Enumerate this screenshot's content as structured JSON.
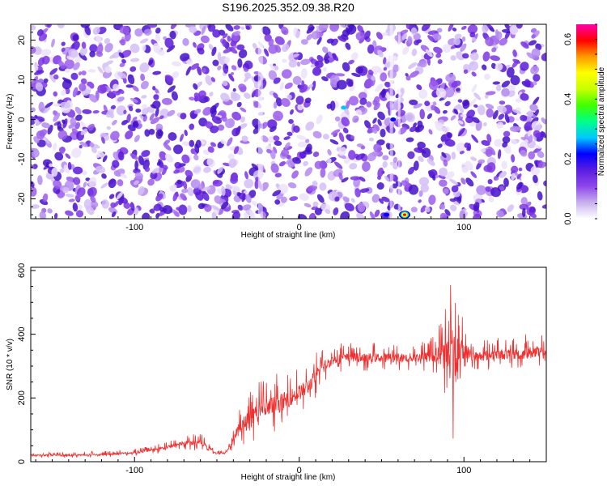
{
  "title": "S196.2025.352.09.38.R20",
  "top_panel": {
    "type": "heatmap",
    "xlabel": "Height of straight line (km)",
    "ylabel": "Frequency (Hz)",
    "xlim": [
      -163,
      150
    ],
    "ylim": [
      -25,
      24
    ],
    "xticks": [
      -100,
      0,
      100
    ],
    "yticks": [
      -20,
      -10,
      0,
      10,
      20
    ],
    "colorbar": {
      "label": "Normalized spectral amplitude",
      "range": [
        0.0,
        0.65
      ],
      "ticks": [
        0.0,
        0.2,
        0.4,
        0.6
      ],
      "colors": [
        "#ffffff",
        "#c8b0ee",
        "#8f46ec",
        "#5b1ee0",
        "#0000ff",
        "#00c8ff",
        "#00ff88",
        "#40ff00",
        "#c8ff00",
        "#ffff00",
        "#ff9900",
        "#ff0000",
        "#ff00aa"
      ]
    },
    "hotspots": [
      {
        "x": 64,
        "y": -24,
        "value": 0.62
      },
      {
        "x": 53,
        "y": -24,
        "value": 0.22
      },
      {
        "x": 27,
        "y": 3,
        "value": 0.25
      },
      {
        "x": 57,
        "y": 0,
        "value": 0.22
      }
    ]
  },
  "chart_data": {
    "type": "line",
    "title": "S196.2025.352.09.38.R20",
    "xlabel": "Height of straight line (km)",
    "ylabel": "SNR (10 * v/v)",
    "xlim": [
      -163,
      150
    ],
    "ylim": [
      0,
      610
    ],
    "xticks": [
      -100,
      0,
      100
    ],
    "yticks": [
      0,
      200,
      400,
      600
    ],
    "series": [
      {
        "name": "SNR",
        "color": "#ee3030",
        "x": [
          -163,
          -140,
          -120,
          -100,
          -90,
          -80,
          -70,
          -60,
          -55,
          -50,
          -45,
          -40,
          -35,
          -30,
          -25,
          -20,
          -15,
          -10,
          -5,
          0,
          5,
          10,
          15,
          20,
          25,
          30,
          40,
          50,
          60,
          70,
          80,
          85,
          90,
          93,
          96,
          97,
          99,
          100,
          105,
          110,
          120,
          130,
          140,
          150
        ],
        "mean": [
          20,
          20,
          22,
          28,
          35,
          45,
          58,
          60,
          45,
          25,
          28,
          70,
          110,
          130,
          150,
          160,
          175,
          185,
          200,
          215,
          230,
          265,
          300,
          315,
          322,
          325,
          325,
          325,
          325,
          325,
          327,
          330,
          330,
          320,
          300,
          330,
          340,
          350,
          330,
          330,
          335,
          335,
          340,
          340
        ],
        "spread": [
          8,
          8,
          9,
          10,
          12,
          15,
          20,
          25,
          15,
          8,
          10,
          40,
          70,
          80,
          90,
          90,
          85,
          80,
          75,
          70,
          70,
          65,
          50,
          45,
          45,
          40,
          40,
          40,
          40,
          40,
          55,
          90,
          160,
          260,
          230,
          160,
          110,
          70,
          45,
          45,
          45,
          45,
          55,
          55
        ]
      }
    ]
  }
}
